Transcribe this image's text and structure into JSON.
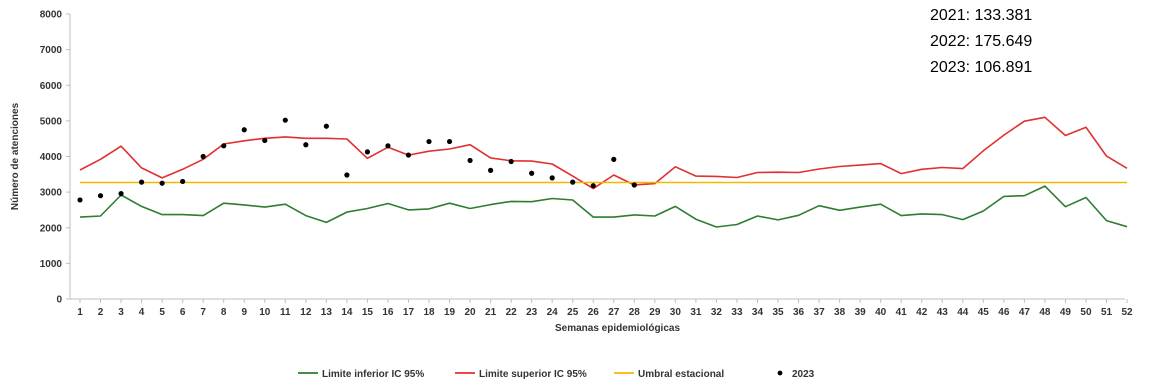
{
  "chart_data": {
    "type": "line",
    "xlabel": "Semanas epidemiológicas",
    "ylabel": "Número de atenciones",
    "ylim": [
      0,
      8000
    ],
    "yticks": [
      0,
      1000,
      2000,
      3000,
      4000,
      5000,
      6000,
      7000,
      8000
    ],
    "x": [
      1,
      2,
      3,
      4,
      5,
      6,
      7,
      8,
      9,
      10,
      11,
      12,
      13,
      14,
      15,
      16,
      17,
      18,
      19,
      20,
      21,
      22,
      23,
      24,
      25,
      26,
      27,
      28,
      29,
      30,
      31,
      32,
      33,
      34,
      35,
      36,
      37,
      38,
      39,
      40,
      41,
      42,
      43,
      44,
      45,
      46,
      47,
      48,
      49,
      50,
      51,
      52
    ],
    "grid": false,
    "legend_position": "bottom",
    "series": [
      {
        "name": "Limite inferior IC 95%",
        "kind": "line",
        "color": "#2e7d32",
        "values": [
          2300,
          2330,
          2920,
          2600,
          2370,
          2370,
          2340,
          2690,
          2640,
          2580,
          2660,
          2340,
          2150,
          2440,
          2540,
          2680,
          2500,
          2530,
          2690,
          2540,
          2650,
          2740,
          2730,
          2820,
          2780,
          2300,
          2300,
          2360,
          2330,
          2600,
          2240,
          2020,
          2090,
          2330,
          2220,
          2350,
          2620,
          2490,
          2580,
          2660,
          2340,
          2390,
          2370,
          2230,
          2470,
          2880,
          2900,
          3170,
          2590,
          2850,
          2200,
          2030
        ]
      },
      {
        "name": "Limite superior IC 95%",
        "kind": "line",
        "color": "#e03030",
        "values": [
          3620,
          3920,
          4290,
          3680,
          3400,
          3640,
          3920,
          4350,
          4440,
          4510,
          4550,
          4510,
          4510,
          4490,
          3950,
          4260,
          4040,
          4150,
          4210,
          4330,
          3960,
          3880,
          3870,
          3790,
          3450,
          3100,
          3480,
          3200,
          3240,
          3710,
          3450,
          3440,
          3410,
          3550,
          3560,
          3550,
          3650,
          3720,
          3760,
          3800,
          3520,
          3640,
          3690,
          3660,
          4160,
          4600,
          4990,
          5100,
          4590,
          4820,
          4010,
          3670
        ]
      },
      {
        "name": "Umbral estacional",
        "kind": "line",
        "color": "#f5b800",
        "values": [
          3270,
          3270,
          3270,
          3270,
          3270,
          3270,
          3270,
          3270,
          3270,
          3270,
          3270,
          3270,
          3270,
          3270,
          3270,
          3270,
          3270,
          3270,
          3270,
          3270,
          3270,
          3270,
          3270,
          3270,
          3270,
          3270,
          3270,
          3270,
          3270,
          3270,
          3270,
          3270,
          3270,
          3270,
          3270,
          3270,
          3270,
          3270,
          3270,
          3270,
          3270,
          3270,
          3270,
          3270,
          3270,
          3270,
          3270,
          3270,
          3270,
          3270,
          3270,
          3270
        ]
      },
      {
        "name": "2023",
        "kind": "scatter",
        "color": "#000000",
        "values": [
          2780,
          2900,
          2960,
          3280,
          3250,
          3300,
          4000,
          4300,
          4750,
          4450,
          5020,
          4330,
          4850,
          3480,
          4130,
          4300,
          4040,
          4420,
          4420,
          3890,
          3610,
          3860,
          3530,
          3400,
          3280,
          3180,
          3920,
          3200
        ]
      }
    ],
    "annotations": [
      "2021: 133.381",
      "2022: 175.649",
      "2023: 106.891"
    ]
  }
}
